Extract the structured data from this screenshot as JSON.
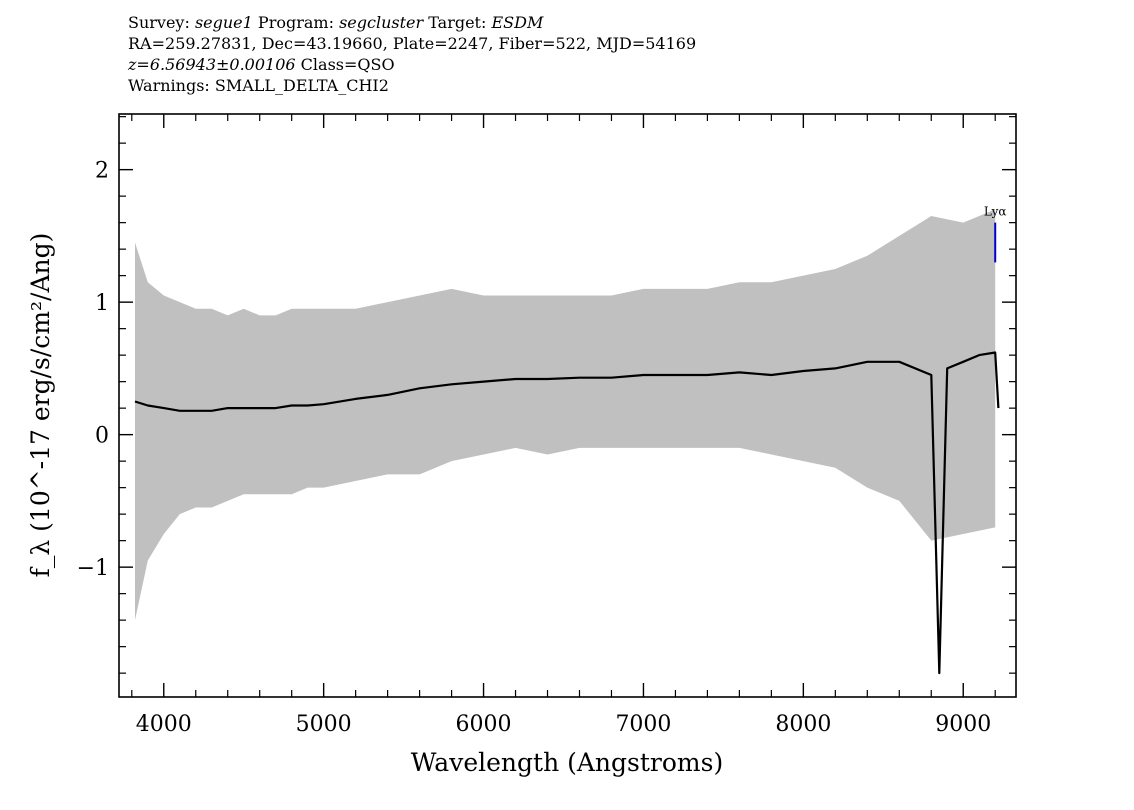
{
  "header": {
    "survey_label": "Survey:",
    "survey": "segue1",
    "program_label": "Program:",
    "program": "segcluster",
    "target_label": "Target:",
    "target": "ESDM",
    "coords": "RA=259.27831, Dec=43.19660, Plate=2247, Fiber=522, MJD=54169",
    "redshift": "z=6.56943±0.00106",
    "class": "Class=QSO",
    "warnings": "Warnings: SMALL_DELTA_CHI2"
  },
  "chart_data": {
    "type": "line",
    "title": "",
    "xlabel": "Wavelength (Angstroms)",
    "ylabel": "f_λ (10^-17 erg/s/cm²/Ang)",
    "xlim": [
      3720,
      9330
    ],
    "ylim": [
      -1.98,
      2.42
    ],
    "x_ticks": [
      4000,
      5000,
      6000,
      7000,
      8000,
      9000
    ],
    "x_tick_labels": [
      "4000",
      "5000",
      "6000",
      "7000",
      "8000",
      "9000"
    ],
    "y_ticks": [
      -1,
      0,
      1,
      2
    ],
    "y_tick_labels": [
      "−1",
      "0",
      "1",
      "2"
    ],
    "grid": false,
    "series": [
      {
        "color": "#c0c0c0",
        "role": "flux error band",
        "x": [
          3820,
          3900,
          4000,
          4100,
          4200,
          4300,
          4400,
          4500,
          4600,
          4700,
          4800,
          4900,
          5000,
          5200,
          5400,
          5600,
          5800,
          6000,
          6200,
          6400,
          6600,
          6800,
          7000,
          7200,
          7400,
          7600,
          7800,
          8000,
          8200,
          8400,
          8600,
          8800,
          9000,
          9200
        ],
        "upper": [
          1.45,
          1.15,
          1.05,
          1.0,
          0.95,
          0.95,
          0.9,
          0.95,
          0.9,
          0.9,
          0.95,
          0.95,
          0.95,
          0.95,
          1.0,
          1.05,
          1.1,
          1.05,
          1.05,
          1.05,
          1.05,
          1.05,
          1.1,
          1.1,
          1.1,
          1.15,
          1.15,
          1.2,
          1.25,
          1.35,
          1.5,
          1.65,
          1.6,
          1.7
        ],
        "lower": [
          -1.4,
          -0.95,
          -0.75,
          -0.6,
          -0.55,
          -0.55,
          -0.5,
          -0.45,
          -0.45,
          -0.45,
          -0.45,
          -0.4,
          -0.4,
          -0.35,
          -0.3,
          -0.3,
          -0.2,
          -0.15,
          -0.1,
          -0.15,
          -0.1,
          -0.1,
          -0.1,
          -0.1,
          -0.1,
          -0.1,
          -0.15,
          -0.2,
          -0.25,
          -0.4,
          -0.5,
          -0.8,
          -0.75,
          -0.7
        ]
      },
      {
        "color": "#000000",
        "role": "flux",
        "x": [
          3820,
          3900,
          4000,
          4100,
          4200,
          4300,
          4400,
          4500,
          4600,
          4700,
          4800,
          4900,
          5000,
          5200,
          5400,
          5600,
          5800,
          6000,
          6200,
          6400,
          6600,
          6800,
          7000,
          7200,
          7400,
          7600,
          7800,
          8000,
          8200,
          8400,
          8600,
          8800,
          8850,
          8900,
          9000,
          9100,
          9200,
          9220
        ],
        "y": [
          0.25,
          0.22,
          0.2,
          0.18,
          0.18,
          0.18,
          0.2,
          0.2,
          0.2,
          0.2,
          0.22,
          0.22,
          0.23,
          0.27,
          0.3,
          0.35,
          0.38,
          0.4,
          0.42,
          0.42,
          0.43,
          0.43,
          0.45,
          0.45,
          0.45,
          0.47,
          0.45,
          0.48,
          0.5,
          0.55,
          0.55,
          0.45,
          -1.8,
          0.5,
          0.55,
          0.6,
          0.62,
          0.2
        ]
      }
    ],
    "annotations": [
      {
        "label": "Lyα",
        "x": 9200,
        "color": "#0000cc",
        "y_range": [
          1.3,
          1.6
        ]
      }
    ]
  }
}
